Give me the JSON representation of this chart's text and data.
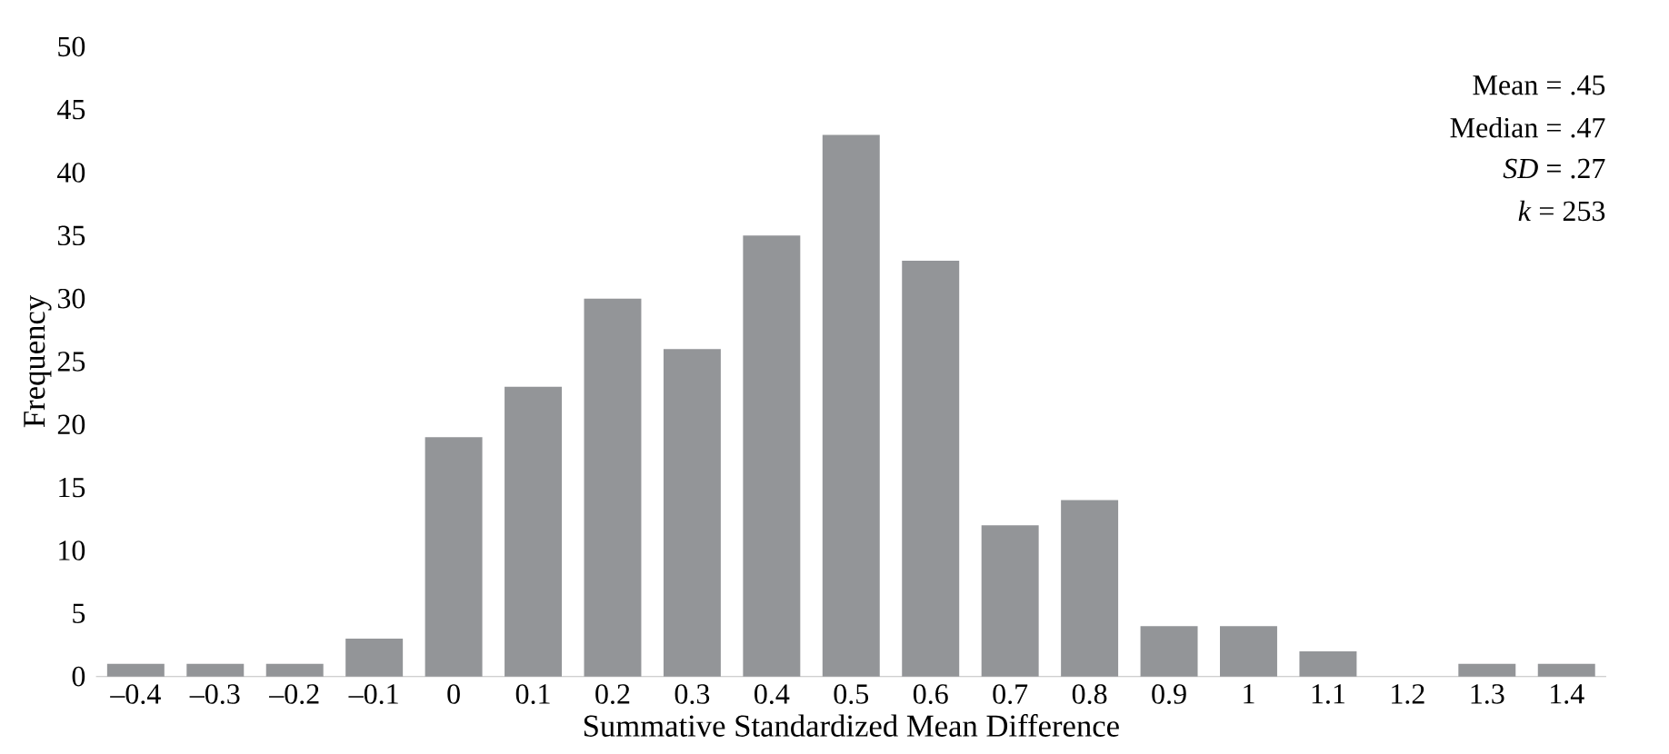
{
  "chart_data": {
    "type": "bar",
    "xlabel": "Summative Standardized Mean Difference",
    "ylabel": "Frequency",
    "categories": [
      "–0.4",
      "–0.3",
      "–0.2",
      "–0.1",
      "0",
      "0.1",
      "0.2",
      "0.3",
      "0.4",
      "0.5",
      "0.6",
      "0.7",
      "0.8",
      "0.9",
      "1",
      "1.1",
      "1.2",
      "1.3",
      "1.4"
    ],
    "values": [
      1,
      1,
      1,
      3,
      19,
      23,
      30,
      26,
      35,
      43,
      33,
      12,
      14,
      4,
      4,
      2,
      0,
      1,
      1
    ],
    "color": "#939598",
    "ylim": [
      0,
      50
    ],
    "yticks": [
      0,
      5,
      10,
      15,
      20,
      25,
      30,
      35,
      40,
      45,
      50
    ],
    "annotations": [
      "Mean = .45",
      "Median = .47",
      "*SD* = .27",
      "*k* = 253"
    ]
  }
}
